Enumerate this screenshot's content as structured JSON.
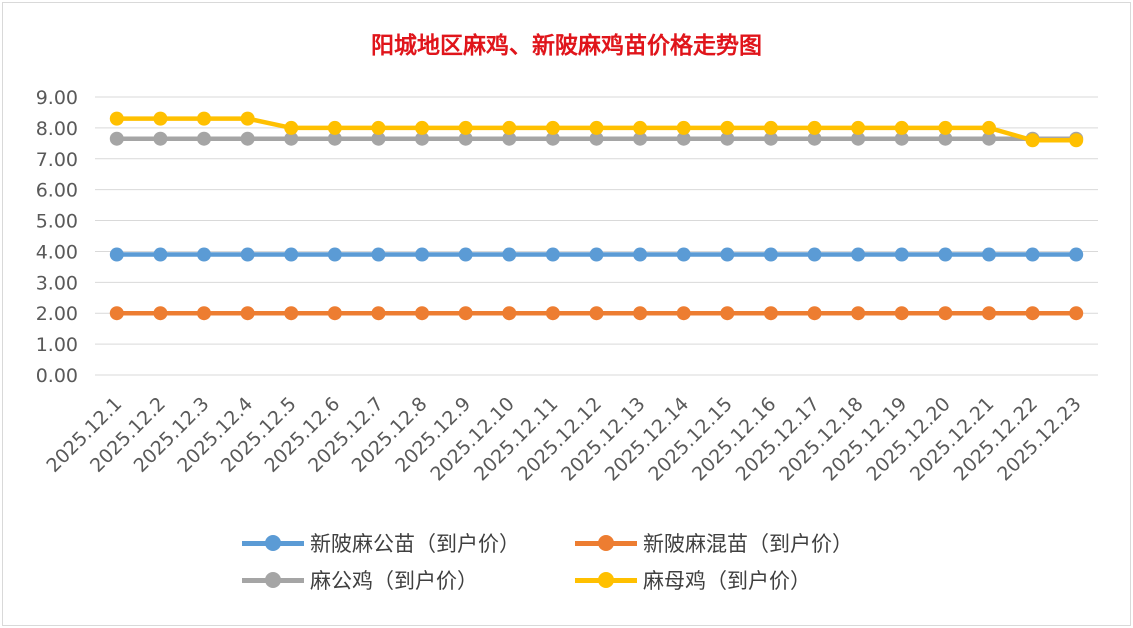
{
  "chart_data": {
    "type": "line",
    "title": "阳城地区麻鸡、新陂麻鸡苗价格走势图",
    "categories": [
      "2025.12.1",
      "2025.12.2",
      "2025.12.3",
      "2025.12.4",
      "2025.12.5",
      "2025.12.6",
      "2025.12.7",
      "2025.12.8",
      "2025.12.9",
      "2025.12.10",
      "2025.12.11",
      "2025.12.12",
      "2025.12.13",
      "2025.12.14",
      "2025.12.15",
      "2025.12.16",
      "2025.12.17",
      "2025.12.18",
      "2025.12.19",
      "2025.12.20",
      "2025.12.21",
      "2025.12.22",
      "2025.12.23"
    ],
    "y_ticks": [
      "0.00",
      "1.00",
      "2.00",
      "3.00",
      "4.00",
      "5.00",
      "6.00",
      "7.00",
      "8.00",
      "9.00"
    ],
    "ylim": [
      0,
      9
    ],
    "grid": true,
    "legend_position": "bottom",
    "series": [
      {
        "name": "新陂麻公苗（到户价）",
        "color": "#5b9bd5",
        "values": [
          3.9,
          3.9,
          3.9,
          3.9,
          3.9,
          3.9,
          3.9,
          3.9,
          3.9,
          3.9,
          3.9,
          3.9,
          3.9,
          3.9,
          3.9,
          3.9,
          3.9,
          3.9,
          3.9,
          3.9,
          3.9,
          3.9,
          3.9
        ]
      },
      {
        "name": "新陂麻混苗（到户价）",
        "color": "#ed7d31",
        "values": [
          2.0,
          2.0,
          2.0,
          2.0,
          2.0,
          2.0,
          2.0,
          2.0,
          2.0,
          2.0,
          2.0,
          2.0,
          2.0,
          2.0,
          2.0,
          2.0,
          2.0,
          2.0,
          2.0,
          2.0,
          2.0,
          2.0,
          2.0
        ]
      },
      {
        "name": "麻公鸡（到户价）",
        "color": "#a5a5a5",
        "values": [
          7.65,
          7.65,
          7.65,
          7.65,
          7.65,
          7.65,
          7.65,
          7.65,
          7.65,
          7.65,
          7.65,
          7.65,
          7.65,
          7.65,
          7.65,
          7.65,
          7.65,
          7.65,
          7.65,
          7.65,
          7.65,
          7.65,
          7.65
        ]
      },
      {
        "name": "麻母鸡（到户价）",
        "color": "#ffc000",
        "values": [
          8.3,
          8.3,
          8.3,
          8.3,
          8.0,
          8.0,
          8.0,
          8.0,
          8.0,
          8.0,
          8.0,
          8.0,
          8.0,
          8.0,
          8.0,
          8.0,
          8.0,
          8.0,
          8.0,
          8.0,
          8.0,
          7.6,
          7.6
        ]
      }
    ]
  }
}
